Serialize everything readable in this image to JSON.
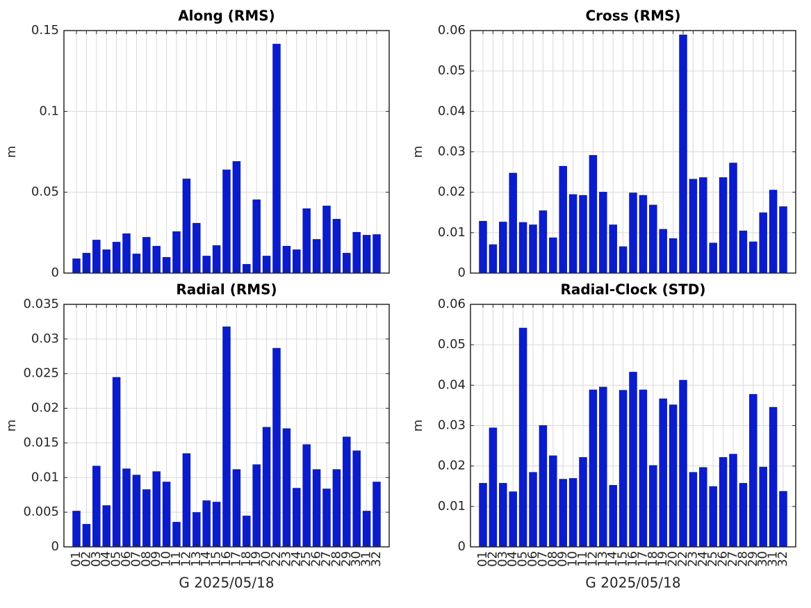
{
  "chart_data": [
    {
      "type": "bar",
      "title": "Along (RMS)",
      "ylabel": "m",
      "color": "#0a1ccc",
      "grid": true,
      "ylim": [
        0,
        0.15
      ],
      "yticks": [
        0,
        0.05,
        0.1,
        0.15
      ],
      "values": [
        0.009,
        0.0125,
        0.0206,
        0.0146,
        0.0193,
        0.0245,
        0.012,
        0.0223,
        0.0168,
        0.0099,
        0.0258,
        0.0584,
        0.031,
        0.0107,
        0.0172,
        0.064,
        0.0692,
        0.0056,
        0.0455,
        0.0107,
        0.1418,
        0.0168,
        0.0146,
        0.04,
        0.021,
        0.0417,
        0.0335,
        0.0125,
        0.0254,
        0.0236,
        0.024
      ]
    },
    {
      "type": "bar",
      "title": "Cross (RMS)",
      "ylabel": "m",
      "color": "#0a1ccc",
      "grid": true,
      "ylim": [
        0,
        0.06
      ],
      "yticks": [
        0,
        0.01,
        0.02,
        0.03,
        0.04,
        0.05,
        0.06
      ],
      "values": [
        0.0129,
        0.0071,
        0.0127,
        0.0248,
        0.0126,
        0.012,
        0.0155,
        0.0088,
        0.0265,
        0.0195,
        0.0193,
        0.0292,
        0.0201,
        0.012,
        0.0066,
        0.0199,
        0.0193,
        0.0169,
        0.0109,
        0.0086,
        0.059,
        0.0233,
        0.0237,
        0.0075,
        0.0237,
        0.0273,
        0.0105,
        0.0078,
        0.015,
        0.0206,
        0.0165
      ]
    },
    {
      "type": "bar",
      "title": "Radial (RMS)",
      "ylabel": "m",
      "xlabel": "G 2025/05/18",
      "color": "#0a1ccc",
      "grid": true,
      "ylim": [
        0,
        0.035
      ],
      "yticks": [
        0,
        0.005,
        0.01,
        0.015,
        0.02,
        0.025,
        0.03,
        0.035
      ],
      "categories": [
        "01",
        "02",
        "03",
        "04",
        "05",
        "06",
        "07",
        "08",
        "09",
        "10",
        "11",
        "12",
        "13",
        "14",
        "15",
        "16",
        "17",
        "18",
        "19",
        "20",
        "22",
        "23",
        "24",
        "25",
        "26",
        "27",
        "28",
        "29",
        "30",
        "31",
        "32"
      ],
      "values": [
        0.0052,
        0.0033,
        0.0117,
        0.006,
        0.0245,
        0.0113,
        0.0104,
        0.0083,
        0.0109,
        0.0094,
        0.0036,
        0.0135,
        0.005,
        0.0067,
        0.0065,
        0.0318,
        0.0112,
        0.0045,
        0.0119,
        0.0173,
        0.0287,
        0.0171,
        0.0085,
        0.0148,
        0.0112,
        0.0084,
        0.0112,
        0.0159,
        0.0139,
        0.0052,
        0.0094
      ]
    },
    {
      "type": "bar",
      "title": "Radial-Clock (STD)",
      "ylabel": "m",
      "xlabel": "G 2025/05/18",
      "color": "#0a1ccc",
      "grid": true,
      "ylim": [
        0,
        0.06
      ],
      "yticks": [
        0,
        0.01,
        0.02,
        0.03,
        0.04,
        0.05,
        0.06
      ],
      "categories": [
        "01",
        "02",
        "03",
        "04",
        "05",
        "06",
        "07",
        "08",
        "09",
        "10",
        "11",
        "12",
        "13",
        "14",
        "15",
        "16",
        "17",
        "18",
        "19",
        "20",
        "22",
        "23",
        "24",
        "25",
        "26",
        "27",
        "28",
        "29",
        "30",
        "31",
        "32"
      ],
      "values": [
        0.0158,
        0.0295,
        0.0158,
        0.0137,
        0.0542,
        0.0185,
        0.0301,
        0.0226,
        0.0168,
        0.017,
        0.0222,
        0.0389,
        0.0396,
        0.0153,
        0.0388,
        0.0433,
        0.0389,
        0.0202,
        0.0367,
        0.0352,
        0.0413,
        0.0185,
        0.0197,
        0.015,
        0.0222,
        0.023,
        0.0158,
        0.0378,
        0.0198,
        0.0346,
        0.0138
      ]
    }
  ]
}
